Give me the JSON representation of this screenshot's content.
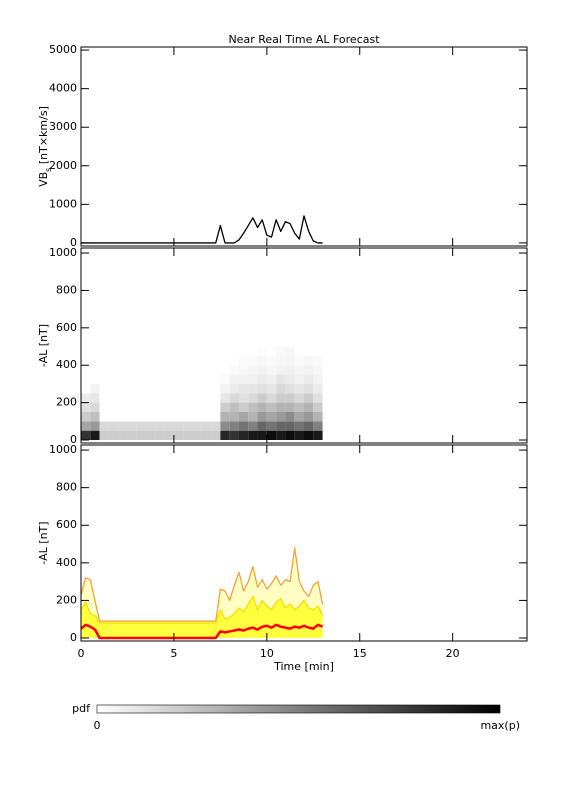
{
  "chart_data": [
    {
      "type": "line",
      "title": "Near Real Time AL Forecast",
      "ylabel": [
        "VB",
        "s",
        " [nT×km/s]"
      ],
      "xlim": [
        0,
        24
      ],
      "xticks": [
        0,
        5,
        10,
        15,
        20
      ],
      "ylim": [
        -80,
        5080
      ],
      "yticks": [
        0,
        1000,
        2000,
        3000,
        4000,
        5000
      ],
      "x": [
        0,
        0.25,
        0.5,
        0.75,
        1,
        1.25,
        1.5,
        1.75,
        2,
        2.25,
        2.5,
        2.75,
        3,
        3.25,
        3.5,
        3.75,
        4,
        4.25,
        4.5,
        4.75,
        5,
        5.25,
        5.5,
        5.75,
        6,
        6.25,
        6.5,
        6.75,
        7,
        7.25,
        7.5,
        7.75,
        8,
        8.25,
        8.5,
        8.75,
        9,
        9.25,
        9.5,
        9.75,
        10,
        10.25,
        10.5,
        10.75,
        11,
        11.25,
        11.5,
        11.75,
        12,
        12.25,
        12.5,
        12.75,
        13
      ],
      "series": [
        {
          "color": "#000000",
          "values": [
            0,
            0,
            0,
            0,
            0,
            0,
            0,
            0,
            0,
            0,
            0,
            0,
            0,
            0,
            0,
            0,
            0,
            0,
            0,
            0,
            0,
            0,
            0,
            0,
            0,
            0,
            0,
            0,
            0,
            0,
            450,
            0,
            0,
            0,
            80,
            250,
            450,
            650,
            400,
            600,
            200,
            150,
            600,
            300,
            550,
            500,
            250,
            100,
            700,
            300,
            50,
            0,
            0
          ]
        }
      ]
    },
    {
      "type": "heatmap",
      "ylabel": "-AL [nT]",
      "xlim": [
        0,
        24
      ],
      "xticks": [
        0,
        5,
        10,
        15,
        20
      ],
      "ylim": [
        -16,
        1027
      ],
      "yticks": [
        0,
        200,
        400,
        600,
        800,
        1000
      ],
      "x_edges": [
        0,
        0.5,
        1,
        1.5,
        2,
        2.5,
        3,
        3.5,
        4,
        4.5,
        5,
        5.5,
        6,
        6.5,
        7,
        7.5,
        8,
        8.5,
        9,
        9.5,
        10,
        10.5,
        11,
        11.5,
        12,
        12.5,
        13
      ],
      "y_edges": [
        0,
        50,
        100,
        150,
        200,
        250,
        300,
        350,
        400,
        450,
        500
      ],
      "z": [
        [
          0.8,
          0.35,
          0.2,
          0.12,
          0.08,
          0,
          0,
          0,
          0,
          0
        ],
        [
          0.9,
          0.4,
          0.25,
          0.15,
          0.1,
          0.05,
          0,
          0,
          0,
          0
        ],
        [
          0.2,
          0.15,
          0,
          0,
          0,
          0,
          0,
          0,
          0,
          0
        ],
        [
          0.2,
          0.15,
          0,
          0,
          0,
          0,
          0,
          0,
          0,
          0
        ],
        [
          0.2,
          0.15,
          0,
          0,
          0,
          0,
          0,
          0,
          0,
          0
        ],
        [
          0.2,
          0.15,
          0,
          0,
          0,
          0,
          0,
          0,
          0,
          0
        ],
        [
          0.2,
          0.15,
          0,
          0,
          0,
          0,
          0,
          0,
          0,
          0
        ],
        [
          0.2,
          0.15,
          0,
          0,
          0,
          0,
          0,
          0,
          0,
          0
        ],
        [
          0.2,
          0.15,
          0,
          0,
          0,
          0,
          0,
          0,
          0,
          0
        ],
        [
          0.2,
          0.15,
          0,
          0,
          0,
          0,
          0,
          0,
          0,
          0
        ],
        [
          0.2,
          0.15,
          0,
          0,
          0,
          0,
          0,
          0,
          0,
          0
        ],
        [
          0.2,
          0.15,
          0,
          0,
          0,
          0,
          0,
          0,
          0,
          0
        ],
        [
          0.2,
          0.15,
          0,
          0,
          0,
          0,
          0,
          0,
          0,
          0
        ],
        [
          0.2,
          0.15,
          0,
          0,
          0,
          0,
          0,
          0,
          0,
          0
        ],
        [
          0.2,
          0.15,
          0,
          0,
          0,
          0,
          0,
          0,
          0,
          0
        ],
        [
          0.85,
          0.45,
          0.3,
          0.2,
          0.1,
          0.05,
          0.02,
          0,
          0,
          0
        ],
        [
          0.8,
          0.5,
          0.3,
          0.25,
          0.15,
          0.08,
          0.05,
          0.02,
          0,
          0
        ],
        [
          0.85,
          0.55,
          0.35,
          0.2,
          0.12,
          0.1,
          0.05,
          0.03,
          0.02,
          0
        ],
        [
          0.9,
          0.5,
          0.3,
          0.25,
          0.15,
          0.1,
          0.06,
          0.04,
          0.02,
          0
        ],
        [
          0.9,
          0.6,
          0.4,
          0.3,
          0.2,
          0.12,
          0.08,
          0.05,
          0.03,
          0.01
        ],
        [
          0.95,
          0.55,
          0.35,
          0.25,
          0.15,
          0.1,
          0.06,
          0.03,
          0.02,
          0
        ],
        [
          0.9,
          0.6,
          0.4,
          0.3,
          0.2,
          0.15,
          0.1,
          0.05,
          0.03,
          0.02
        ],
        [
          0.95,
          0.6,
          0.45,
          0.3,
          0.2,
          0.12,
          0.08,
          0.06,
          0.04,
          0.03
        ],
        [
          0.9,
          0.55,
          0.35,
          0.25,
          0.15,
          0.1,
          0.06,
          0.04,
          0.02,
          0
        ],
        [
          0.95,
          0.6,
          0.4,
          0.3,
          0.2,
          0.12,
          0.08,
          0.05,
          0.03,
          0
        ],
        [
          0.9,
          0.5,
          0.3,
          0.2,
          0.12,
          0.08,
          0.05,
          0.03,
          0.02,
          0
        ]
      ],
      "colorbar": {
        "label": "pdf",
        "min_label": "0",
        "max_label": "max(p)",
        "colors": [
          "#ffffff",
          "#000000"
        ]
      }
    },
    {
      "type": "line",
      "ylabel": "-AL [nT]",
      "xlabel": "Time [min]",
      "show_xtick_labels": true,
      "xlim": [
        0,
        24
      ],
      "xticks": [
        0,
        5,
        10,
        15,
        20
      ],
      "ylim": [
        -16,
        1027
      ],
      "yticks": [
        0,
        200,
        400,
        600,
        800,
        1000
      ],
      "x": [
        0,
        0.25,
        0.5,
        0.75,
        1,
        1.25,
        1.5,
        1.75,
        2,
        2.25,
        2.5,
        2.75,
        3,
        3.25,
        3.5,
        3.75,
        4,
        4.25,
        4.5,
        4.75,
        5,
        5.25,
        5.5,
        5.75,
        6,
        6.25,
        6.5,
        6.75,
        7,
        7.25,
        7.5,
        7.75,
        8,
        8.25,
        8.5,
        8.75,
        9,
        9.25,
        9.5,
        9.75,
        10,
        10.25,
        10.5,
        10.75,
        11,
        11.25,
        11.5,
        11.75,
        12,
        12.25,
        12.5,
        12.75,
        13
      ],
      "series": [
        {
          "color": "#f5a03a",
          "fill": "#ffffc4",
          "values": [
            230,
            320,
            310,
            200,
            90,
            90,
            90,
            90,
            90,
            90,
            90,
            90,
            90,
            90,
            90,
            90,
            90,
            90,
            90,
            90,
            90,
            90,
            90,
            90,
            90,
            90,
            90,
            90,
            90,
            90,
            260,
            250,
            200,
            280,
            350,
            250,
            300,
            380,
            270,
            310,
            260,
            290,
            330,
            280,
            310,
            300,
            480,
            300,
            250,
            220,
            280,
            300,
            180
          ]
        },
        {
          "color": "#f0e000",
          "fill": "#ffff40",
          "values": [
            150,
            190,
            130,
            120,
            80,
            80,
            80,
            80,
            80,
            80,
            80,
            80,
            80,
            80,
            80,
            80,
            80,
            80,
            80,
            80,
            80,
            80,
            80,
            80,
            80,
            80,
            80,
            80,
            80,
            80,
            150,
            100,
            110,
            130,
            160,
            140,
            180,
            220,
            150,
            200,
            170,
            150,
            190,
            210,
            160,
            180,
            150,
            170,
            200,
            160,
            150,
            170,
            120
          ]
        },
        {
          "color": "#ff0000",
          "width": 2.5,
          "values": [
            50,
            70,
            60,
            45,
            0,
            0,
            0,
            0,
            0,
            0,
            0,
            0,
            0,
            0,
            0,
            0,
            0,
            0,
            0,
            0,
            0,
            0,
            0,
            0,
            0,
            0,
            0,
            0,
            0,
            0,
            35,
            30,
            35,
            40,
            45,
            40,
            50,
            55,
            45,
            60,
            65,
            55,
            70,
            60,
            55,
            50,
            60,
            55,
            65,
            55,
            50,
            70,
            60
          ]
        }
      ]
    }
  ]
}
